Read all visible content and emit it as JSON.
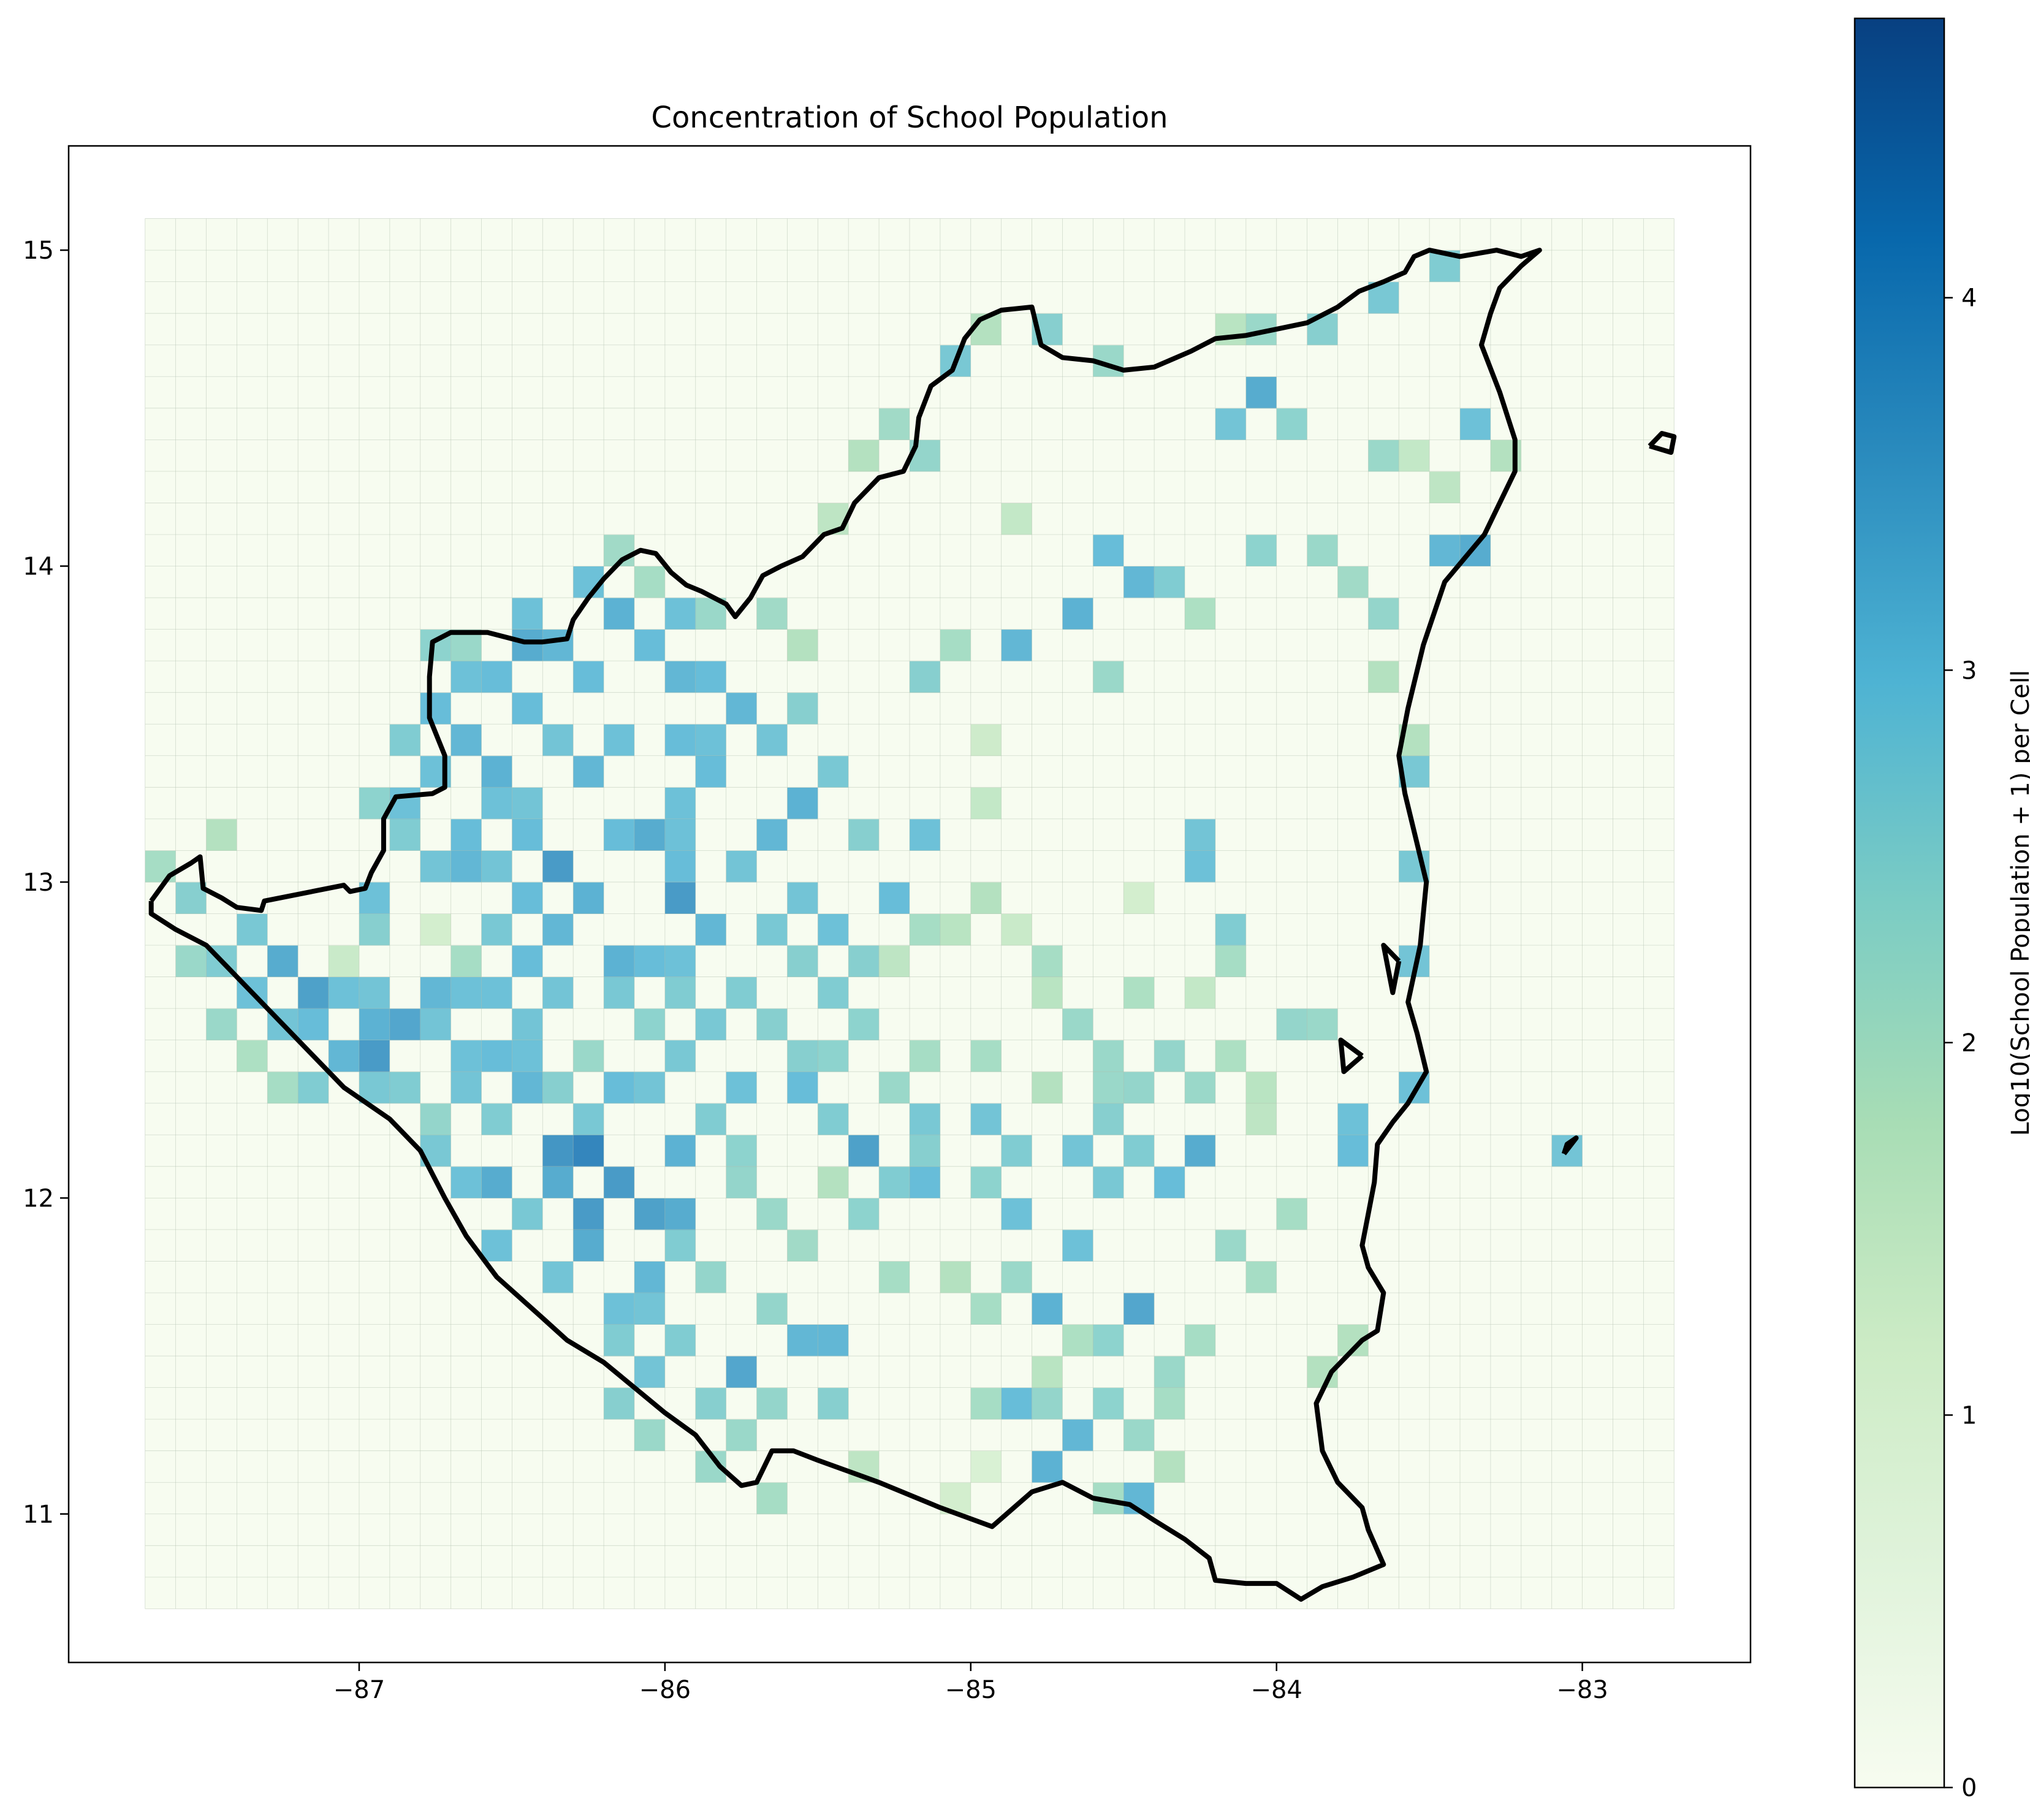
{
  "chart_data": {
    "type": "heatmap",
    "title": "Concentration of School Population",
    "xlabel": "",
    "ylabel": "",
    "xlim": [
      -87.95,
      -82.45
    ],
    "ylim": [
      10.53,
      15.33
    ],
    "xticks": [
      -87,
      -86,
      -85,
      -84,
      -83
    ],
    "xtick_labels": [
      "−87",
      "−86",
      "−85",
      "−84",
      "−83"
    ],
    "yticks": [
      11,
      12,
      13,
      14,
      15
    ],
    "ytick_labels": [
      "11",
      "12",
      "13",
      "14",
      "15"
    ],
    "grid": {
      "lon_min": -87.7,
      "lat_min": 10.7,
      "cell_size": 0.1,
      "n_cols": 50,
      "n_rows": 44
    },
    "colorbar": {
      "label": "Log10(School Population + 1) per Cell",
      "colormap": "GnBu",
      "range": [
        0,
        4.75
      ],
      "ticks": [
        0,
        1,
        2,
        3,
        4
      ],
      "tick_labels": [
        "0",
        "1",
        "2",
        "3",
        "4"
      ]
    },
    "outline_color": "#000000",
    "cells": [
      [
        -86.25,
        12.15,
        4.0
      ],
      [
        -86.35,
        12.15,
        3.7
      ],
      [
        -86.15,
        12.05,
        3.6
      ],
      [
        -86.25,
        11.95,
        3.6
      ],
      [
        -86.05,
        11.95,
        3.5
      ],
      [
        -86.35,
        13.05,
        3.6
      ],
      [
        -86.0,
        12.95,
        3.6
      ],
      [
        -86.55,
        12.05,
        3.3
      ],
      [
        -86.35,
        12.0,
        3.3
      ],
      [
        -86.3,
        11.85,
        3.3
      ],
      [
        -86.1,
        11.75,
        3.1
      ],
      [
        -85.9,
        11.95,
        3.3
      ],
      [
        -85.95,
        12.1,
        3.2
      ],
      [
        -86.45,
        12.3,
        3.1
      ],
      [
        -86.15,
        12.3,
        3.0
      ],
      [
        -86.45,
        12.55,
        2.8
      ],
      [
        -86.6,
        12.45,
        3.0
      ],
      [
        -86.8,
        12.6,
        3.1
      ],
      [
        -86.7,
        12.4,
        2.9
      ],
      [
        -87.15,
        12.65,
        3.5
      ],
      [
        -87.25,
        12.75,
        3.3
      ],
      [
        -87.0,
        12.5,
        3.2
      ],
      [
        -86.9,
        12.45,
        3.6
      ],
      [
        -86.85,
        12.55,
        3.4
      ],
      [
        -87.1,
        12.45,
        3.1
      ],
      [
        -86.65,
        13.0,
        3.1
      ],
      [
        -86.45,
        13.1,
        3.0
      ],
      [
        -86.25,
        12.9,
        3.2
      ],
      [
        -86.1,
        13.1,
        3.3
      ],
      [
        -85.85,
        12.85,
        3.1
      ],
      [
        -85.95,
        13.0,
        3.0
      ],
      [
        -86.15,
        12.75,
        3.2
      ],
      [
        -86.3,
        13.3,
        3.1
      ],
      [
        -86.55,
        13.35,
        3.2
      ],
      [
        -86.75,
        13.5,
        3.0
      ],
      [
        -86.45,
        13.7,
        3.3
      ],
      [
        -86.15,
        13.85,
        3.2
      ],
      [
        -86.0,
        13.65,
        3.1
      ],
      [
        -85.75,
        13.55,
        3.1
      ],
      [
        -85.85,
        13.3,
        3.0
      ],
      [
        -85.7,
        13.15,
        3.1
      ],
      [
        -85.55,
        13.25,
        3.2
      ],
      [
        -85.6,
        12.95,
        2.8
      ],
      [
        -85.4,
        12.85,
        2.9
      ],
      [
        -85.35,
        12.1,
        3.5
      ],
      [
        -85.15,
        12.0,
        3.0
      ],
      [
        -84.85,
        11.95,
        2.9
      ],
      [
        -84.7,
        11.85,
        2.9
      ],
      [
        -84.45,
        11.65,
        3.4
      ],
      [
        -84.75,
        11.65,
        3.2
      ],
      [
        -84.65,
        11.2,
        3.1
      ],
      [
        -84.75,
        11.15,
        3.2
      ],
      [
        -84.45,
        11.05,
        3.1
      ],
      [
        -85.75,
        11.45,
        3.4
      ],
      [
        -85.55,
        11.55,
        3.1
      ],
      [
        -85.45,
        11.55,
        3.1
      ],
      [
        -84.85,
        11.35,
        3.0
      ],
      [
        -84.25,
        12.15,
        3.3
      ],
      [
        -84.35,
        12.05,
        3.0
      ],
      [
        -84.55,
        12.0,
        2.7
      ],
      [
        -85.0,
        12.2,
        2.8
      ],
      [
        -85.2,
        12.25,
        2.7
      ],
      [
        -85.55,
        12.35,
        3.0
      ],
      [
        -85.65,
        12.5,
        2.9
      ],
      [
        -85.75,
        12.3,
        2.9
      ],
      [
        -85.45,
        12.65,
        2.6
      ],
      [
        -85.25,
        12.95,
        3.0
      ],
      [
        -85.15,
        13.15,
        2.9
      ],
      [
        -84.65,
        13.8,
        3.2
      ],
      [
        -84.85,
        13.75,
        3.1
      ],
      [
        -84.45,
        13.95,
        3.1
      ],
      [
        -84.6,
        14.05,
        3.0
      ],
      [
        -84.05,
        14.55,
        3.3
      ],
      [
        -84.15,
        14.45,
        2.8
      ],
      [
        -83.95,
        14.4,
        2.4
      ],
      [
        -83.35,
        14.05,
        3.3
      ],
      [
        -83.45,
        14.0,
        3.1
      ],
      [
        -83.35,
        14.45,
        2.9
      ],
      [
        -83.05,
        12.15,
        2.8
      ],
      [
        -83.8,
        12.1,
        3.0
      ],
      [
        -83.75,
        12.2,
        2.9
      ],
      [
        -83.6,
        12.35,
        2.9
      ],
      [
        -83.55,
        12.7,
        2.8
      ],
      [
        -83.55,
        13.0,
        2.7
      ],
      [
        -83.55,
        13.35,
        2.7
      ],
      [
        -84.25,
        13.05,
        2.9
      ],
      [
        -84.25,
        13.15,
        2.8
      ],
      [
        -84.15,
        12.85,
        2.6
      ],
      [
        -84.0,
        12.5,
        2.3
      ],
      [
        -83.85,
        12.55,
        2.2
      ],
      [
        -85.95,
        11.85,
        2.6
      ],
      [
        -85.85,
        11.75,
        2.3
      ],
      [
        -85.65,
        11.65,
        2.3
      ],
      [
        -85.5,
        11.35,
        2.5
      ],
      [
        -85.75,
        11.2,
        2.2
      ],
      [
        -85.7,
        11.05,
        2.0
      ],
      [
        -85.35,
        11.15,
        1.6
      ],
      [
        -85.05,
        11.05,
        1.2
      ],
      [
        -84.95,
        11.15,
        1.0
      ],
      [
        -84.55,
        11.35,
        2.4
      ],
      [
        -84.35,
        11.45,
        2.2
      ],
      [
        -84.25,
        11.55,
        2.0
      ],
      [
        -84.05,
        11.75,
        2.0
      ],
      [
        -84.15,
        11.85,
        2.2
      ],
      [
        -83.95,
        11.95,
        2.0
      ],
      [
        -83.75,
        11.55,
        1.8
      ],
      [
        -83.85,
        11.45,
        1.8
      ],
      [
        -84.35,
        12.45,
        2.3
      ],
      [
        -84.55,
        12.35,
        2.2
      ],
      [
        -84.75,
        12.35,
        1.8
      ],
      [
        -84.95,
        12.45,
        2.0
      ],
      [
        -85.15,
        12.45,
        2.0
      ],
      [
        -84.8,
        12.6,
        1.7
      ],
      [
        -84.4,
        12.65,
        1.9
      ],
      [
        -84.2,
        12.75,
        2.0
      ],
      [
        -84.05,
        12.25,
        1.6
      ],
      [
        -84.25,
        12.6,
        1.5
      ],
      [
        -84.45,
        12.9,
        1.2
      ],
      [
        -85.05,
        12.8,
        1.7
      ],
      [
        -85.25,
        12.75,
        1.6
      ],
      [
        -84.85,
        12.85,
        1.4
      ],
      [
        -85.0,
        13.2,
        1.5
      ],
      [
        -84.9,
        13.45,
        1.3
      ],
      [
        -85.2,
        13.6,
        2.5
      ],
      [
        -85.05,
        13.75,
        2.0
      ],
      [
        -84.55,
        13.65,
        2.2
      ],
      [
        -84.35,
        13.95,
        2.6
      ],
      [
        -84.3,
        13.8,
        1.9
      ],
      [
        -84.15,
        14.7,
        1.7
      ],
      [
        -84.05,
        14.75,
        2.2
      ],
      [
        -83.85,
        14.75,
        2.5
      ],
      [
        -83.65,
        14.85,
        2.7
      ],
      [
        -83.45,
        14.95,
        2.6
      ],
      [
        -84.75,
        14.7,
        2.5
      ],
      [
        -84.55,
        14.65,
        2.2
      ],
      [
        -84.95,
        14.75,
        1.8
      ],
      [
        -85.05,
        14.6,
        2.7
      ],
      [
        -85.25,
        14.4,
        2.1
      ],
      [
        -85.35,
        14.3,
        1.8
      ],
      [
        -85.15,
        14.3,
        2.3
      ],
      [
        -85.5,
        14.1,
        1.6
      ],
      [
        -84.85,
        14.15,
        1.5
      ],
      [
        -84.05,
        14.05,
        2.4
      ],
      [
        -83.85,
        14.05,
        2.2
      ],
      [
        -83.75,
        13.95,
        2.1
      ],
      [
        -83.65,
        13.85,
        2.3
      ],
      [
        -83.7,
        13.65,
        1.8
      ],
      [
        -83.55,
        13.4,
        1.8
      ],
      [
        -83.25,
        14.35,
        1.8
      ],
      [
        -83.55,
        14.35,
        1.5
      ],
      [
        -83.65,
        14.3,
        2.2
      ],
      [
        -83.45,
        14.2,
        1.6
      ],
      [
        -86.2,
        14.0,
        2.1
      ],
      [
        -86.05,
        13.95,
        2.0
      ],
      [
        -85.85,
        13.85,
        2.2
      ],
      [
        -85.65,
        13.8,
        2.1
      ],
      [
        -85.55,
        13.7,
        1.8
      ],
      [
        -86.65,
        13.75,
        2.2
      ],
      [
        -86.8,
        13.7,
        2.1
      ],
      [
        -86.95,
        13.2,
        2.4
      ],
      [
        -86.85,
        13.1,
        2.6
      ],
      [
        -87.0,
        12.85,
        2.5
      ],
      [
        -87.05,
        12.75,
        1.4
      ],
      [
        -86.75,
        12.85,
        1.2
      ],
      [
        -86.7,
        12.75,
        2.0
      ],
      [
        -86.55,
        12.85,
        2.7
      ],
      [
        -86.9,
        12.95,
        2.9
      ],
      [
        -87.35,
        12.85,
        2.7
      ],
      [
        -87.45,
        12.75,
        2.6
      ],
      [
        -87.55,
        12.9,
        2.5
      ],
      [
        -87.6,
        12.7,
        2.2
      ],
      [
        -87.65,
        13.05,
        2.0
      ],
      [
        -87.5,
        13.1,
        1.8
      ],
      [
        -86.65,
        12.05,
        2.9
      ],
      [
        -86.55,
        11.85,
        2.9
      ],
      [
        -86.35,
        11.75,
        2.8
      ],
      [
        -86.15,
        11.55,
        2.6
      ],
      [
        -86.05,
        11.45,
        2.8
      ],
      [
        -86.15,
        11.35,
        2.5
      ],
      [
        -86.05,
        11.25,
        2.2
      ],
      [
        -85.85,
        11.15,
        2.2
      ],
      [
        -86.75,
        12.2,
        2.3
      ],
      [
        -86.85,
        12.3,
        2.6
      ],
      [
        -86.95,
        12.35,
        2.7
      ],
      [
        -86.45,
        12.4,
        2.9
      ],
      [
        -86.25,
        12.45,
        2.2
      ],
      [
        -86.1,
        12.55,
        2.4
      ],
      [
        -85.95,
        12.6,
        2.6
      ],
      [
        -85.75,
        12.65,
        2.6
      ],
      [
        -85.55,
        12.75,
        2.5
      ],
      [
        -85.35,
        12.55,
        2.4
      ],
      [
        -85.45,
        12.4,
        2.4
      ],
      [
        -85.25,
        12.35,
        2.2
      ],
      [
        -85.35,
        11.95,
        2.4
      ],
      [
        -85.55,
        11.85,
        2.1
      ],
      [
        -85.65,
        11.95,
        2.2
      ],
      [
        -85.75,
        12.05,
        2.3
      ],
      [
        -85.45,
        12.0,
        1.8
      ],
      [
        -85.25,
        11.75,
        2.0
      ],
      [
        -85.05,
        11.75,
        1.8
      ],
      [
        -84.95,
        11.65,
        2.0
      ],
      [
        -84.85,
        11.75,
        2.2
      ],
      [
        -84.65,
        11.5,
        1.9
      ],
      [
        -84.55,
        11.55,
        2.4
      ],
      [
        -84.75,
        11.45,
        1.7
      ],
      [
        -84.9,
        11.3,
        2.0
      ],
      [
        -84.75,
        11.3,
        2.3
      ],
      [
        -84.55,
        11.0,
        2.0
      ],
      [
        -84.35,
        11.15,
        1.8
      ],
      [
        -84.45,
        11.25,
        2.2
      ],
      [
        -84.35,
        11.35,
        2.0
      ],
      [
        -84.65,
        12.15,
        2.8
      ],
      [
        -84.55,
        12.25,
        2.5
      ],
      [
        -84.45,
        12.15,
        2.6
      ],
      [
        -84.85,
        12.15,
        2.6
      ],
      [
        -84.95,
        12.05,
        2.4
      ],
      [
        -85.15,
        12.15,
        2.5
      ],
      [
        -85.25,
        12.05,
        2.6
      ],
      [
        -85.45,
        12.2,
        2.6
      ],
      [
        -85.75,
        12.15,
        2.4
      ],
      [
        -85.85,
        12.25,
        2.6
      ],
      [
        -85.95,
        12.4,
        2.7
      ],
      [
        -86.05,
        12.3,
        2.8
      ],
      [
        -86.25,
        12.25,
        2.7
      ],
      [
        -86.35,
        12.35,
        2.5
      ],
      [
        -86.55,
        12.25,
        2.6
      ],
      [
        -86.65,
        12.3,
        2.8
      ],
      [
        -86.75,
        12.1,
        2.7
      ],
      [
        -86.45,
        11.95,
        2.7
      ],
      [
        -86.2,
        11.65,
        2.9
      ],
      [
        -86.05,
        11.65,
        2.8
      ],
      [
        -85.95,
        11.55,
        2.6
      ],
      [
        -85.85,
        11.35,
        2.5
      ],
      [
        -85.65,
        11.35,
        2.3
      ],
      [
        -86.45,
        12.7,
        3.0
      ],
      [
        -86.35,
        12.65,
        2.8
      ],
      [
        -86.2,
        12.65,
        2.7
      ],
      [
        -86.05,
        12.75,
        3.0
      ],
      [
        -85.95,
        12.75,
        2.9
      ],
      [
        -85.85,
        12.55,
        2.7
      ],
      [
        -85.65,
        12.55,
        2.5
      ],
      [
        -85.55,
        12.45,
        2.5
      ],
      [
        -86.55,
        12.6,
        2.9
      ],
      [
        -86.65,
        12.65,
        2.9
      ],
      [
        -86.75,
        12.55,
        2.8
      ],
      [
        -86.95,
        12.65,
        2.8
      ],
      [
        -87.05,
        12.6,
        2.9
      ],
      [
        -87.15,
        12.55,
        3.0
      ],
      [
        -87.25,
        12.55,
        2.8
      ],
      [
        -86.35,
        12.85,
        3.1
      ],
      [
        -86.45,
        12.95,
        3.0
      ],
      [
        -86.55,
        13.05,
        2.8
      ],
      [
        -86.65,
        13.15,
        3.0
      ],
      [
        -86.75,
        13.05,
        2.8
      ],
      [
        -86.85,
        13.2,
        2.9
      ],
      [
        -86.6,
        13.25,
        2.9
      ],
      [
        -86.4,
        13.2,
        2.8
      ],
      [
        -86.2,
        13.1,
        3.0
      ],
      [
        -86.0,
        13.2,
        2.9
      ],
      [
        -85.9,
        13.1,
        2.9
      ],
      [
        -85.75,
        13.0,
        2.8
      ],
      [
        -85.65,
        12.85,
        2.7
      ],
      [
        -85.85,
        13.4,
        2.9
      ],
      [
        -86.0,
        13.45,
        3.0
      ],
      [
        -86.15,
        13.4,
        2.9
      ],
      [
        -86.35,
        13.45,
        2.8
      ],
      [
        -86.45,
        13.55,
        3.0
      ],
      [
        -86.65,
        13.45,
        3.1
      ],
      [
        -86.65,
        13.6,
        2.9
      ],
      [
        -86.55,
        13.65,
        3.0
      ],
      [
        -86.35,
        13.75,
        3.1
      ],
      [
        -86.25,
        13.65,
        3.0
      ],
      [
        -86.1,
        13.75,
        3.0
      ],
      [
        -85.95,
        13.8,
        2.9
      ],
      [
        -85.85,
        13.65,
        3.0
      ],
      [
        -85.65,
        13.45,
        2.8
      ],
      [
        -85.55,
        13.55,
        2.5
      ],
      [
        -85.45,
        13.3,
        2.7
      ],
      [
        -85.35,
        13.15,
        2.5
      ],
      [
        -86.75,
        13.35,
        2.9
      ],
      [
        -86.85,
        13.45,
        2.6
      ],
      [
        -86.75,
        13.75,
        2.4
      ],
      [
        -86.45,
        13.85,
        2.9
      ],
      [
        -86.25,
        13.95,
        2.9
      ],
      [
        -87.45,
        12.55,
        2.2
      ],
      [
        -87.35,
        12.45,
        1.9
      ],
      [
        -87.25,
        12.35,
        2.0
      ],
      [
        -87.15,
        12.35,
        2.6
      ],
      [
        -87.35,
        12.65,
        2.9
      ],
      [
        -85.35,
        12.75,
        2.5
      ],
      [
        -85.15,
        12.85,
        2.0
      ],
      [
        -84.9,
        12.9,
        1.8
      ],
      [
        -84.75,
        12.7,
        2.0
      ],
      [
        -84.65,
        12.55,
        2.2
      ],
      [
        -84.55,
        12.45,
        2.2
      ],
      [
        -84.4,
        12.35,
        2.3
      ],
      [
        -84.25,
        12.35,
        2.2
      ],
      [
        -84.15,
        12.45,
        1.9
      ],
      [
        -84.05,
        12.35,
        1.7
      ]
    ]
  }
}
